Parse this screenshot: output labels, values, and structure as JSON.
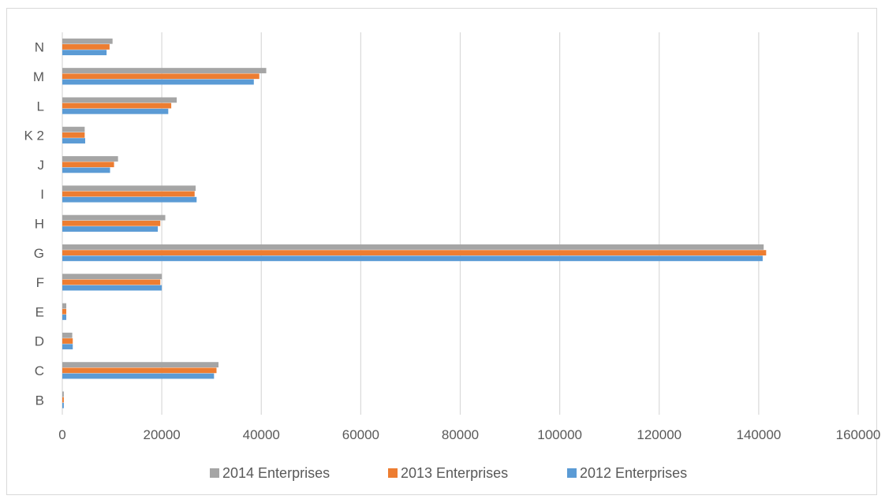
{
  "chart_data": {
    "type": "bar",
    "orientation": "horizontal",
    "title": "",
    "xlabel": "",
    "ylabel": "",
    "categories": [
      "B",
      "C",
      "D",
      "E",
      "F",
      "G",
      "H",
      "I",
      "J",
      "K 2",
      "L",
      "M",
      "N"
    ],
    "series": [
      {
        "name": "2012 Enterprises",
        "color": "#5b9bd5",
        "values": [
          300,
          30500,
          2100,
          800,
          20000,
          140800,
          19200,
          27000,
          9600,
          4600,
          21300,
          38500,
          8900
        ]
      },
      {
        "name": "2013 Enterprises",
        "color": "#ed7d31",
        "values": [
          300,
          31000,
          2100,
          800,
          19700,
          141500,
          19700,
          26600,
          10400,
          4500,
          21900,
          39600,
          9500
        ]
      },
      {
        "name": "2014 Enterprises",
        "color": "#a5a5a5",
        "values": [
          300,
          31400,
          2000,
          800,
          20000,
          141000,
          20700,
          26800,
          11200,
          4500,
          23000,
          41000,
          10100
        ]
      }
    ],
    "xlim": [
      0,
      160000
    ],
    "xticks": [
      "0",
      "20000",
      "40000",
      "60000",
      "80000",
      "100000",
      "120000",
      "140000",
      "160000"
    ],
    "grid": true,
    "legend": {
      "position": "bottom",
      "order": [
        "2014 Enterprises",
        "2013 Enterprises",
        "2012 Enterprises"
      ]
    },
    "gridline_color": "#d9d9d9"
  }
}
